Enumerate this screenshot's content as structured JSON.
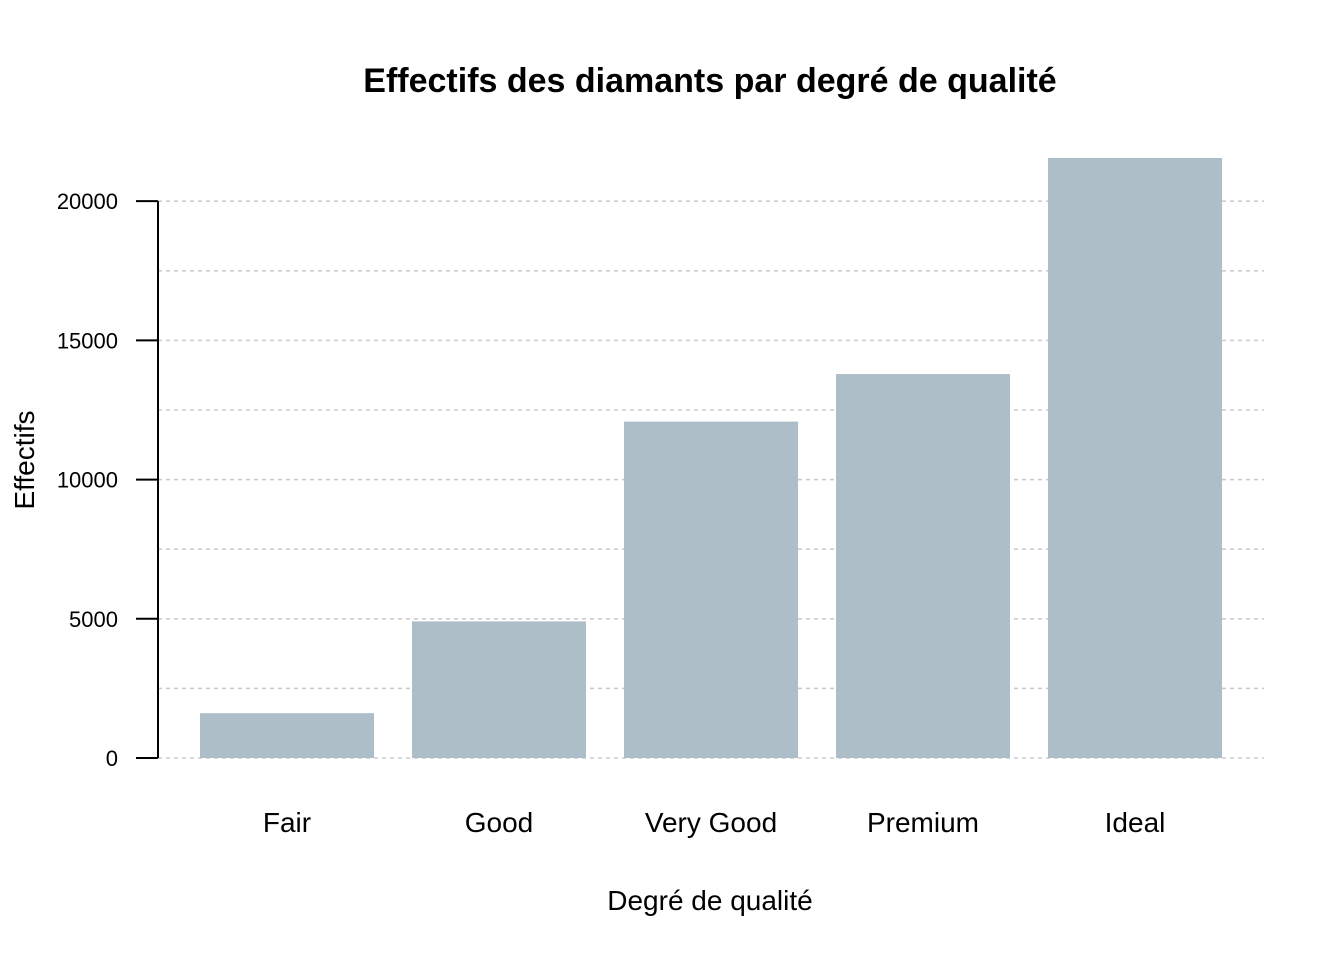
{
  "chart_data": {
    "type": "bar",
    "title": "Effectifs des diamants par degré de qualité",
    "xlabel": "Degré de qualité",
    "ylabel": "Effectifs",
    "categories": [
      "Fair",
      "Good",
      "Very Good",
      "Premium",
      "Ideal"
    ],
    "values": [
      1610,
      4906,
      12082,
      13791,
      21551
    ],
    "ylim": [
      0,
      21551
    ],
    "yticks": [
      0,
      5000,
      10000,
      15000,
      20000
    ],
    "ygrid": [
      0,
      2500,
      5000,
      7500,
      10000,
      12500,
      15000,
      17500,
      20000
    ],
    "grid": true,
    "bar_color": "#aebec8",
    "grid_color": "#cccccc"
  }
}
